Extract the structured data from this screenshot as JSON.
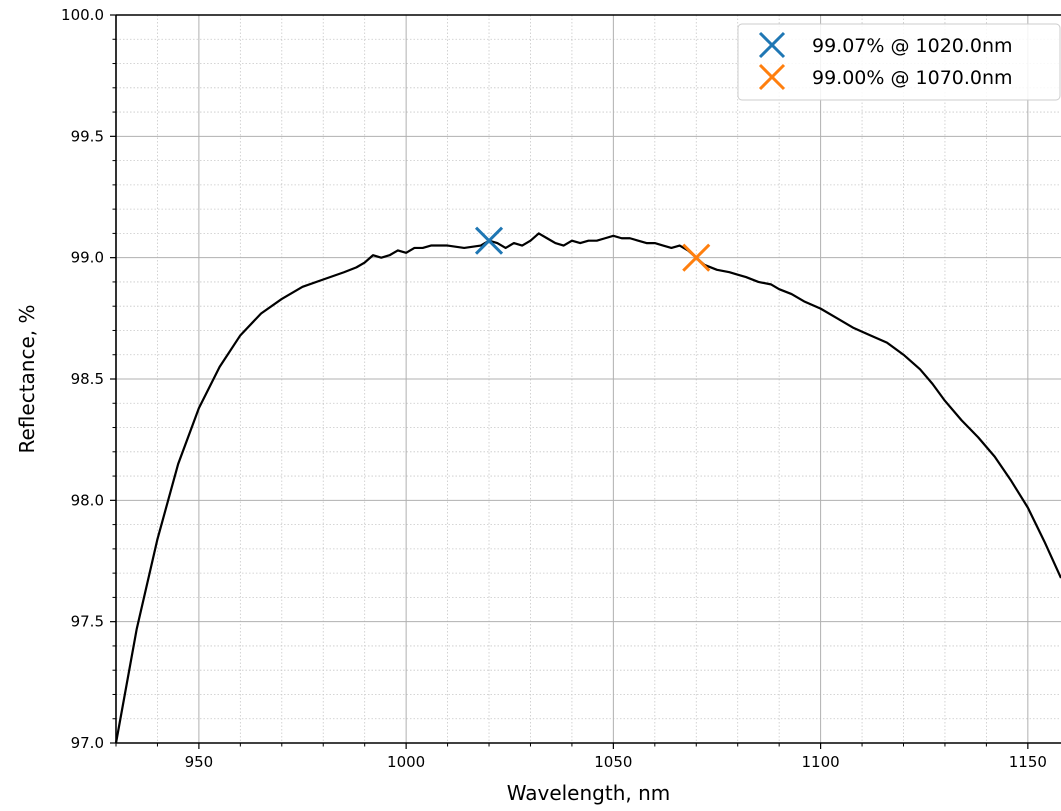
{
  "chart_data": {
    "type": "line",
    "xlabel": "Wavelength, nm",
    "ylabel": "Reflectance, %",
    "xlim": [
      930,
      1158
    ],
    "ylim": [
      97.0,
      100.0
    ],
    "x_ticks": [
      950,
      1000,
      1050,
      1100,
      1150
    ],
    "x_tick_labels": [
      "950",
      "1000",
      "1050",
      "1100",
      "1150"
    ],
    "y_ticks": [
      97.0,
      97.5,
      98.0,
      98.5,
      99.0,
      99.5,
      100.0
    ],
    "y_tick_labels": [
      "97.0",
      "97.5",
      "98.0",
      "98.5",
      "99.0",
      "99.5",
      "100.0"
    ],
    "grid": {
      "major": true,
      "minor": true
    },
    "legend_position": "top-right",
    "series": [
      {
        "color": "#000000",
        "x": [
          930,
          935,
          940,
          945,
          950,
          955,
          960,
          965,
          970,
          975,
          980,
          985,
          988,
          990,
          992,
          994,
          996,
          998,
          1000,
          1002,
          1004,
          1006,
          1010,
          1014,
          1018,
          1020,
          1022,
          1024,
          1026,
          1028,
          1030,
          1032,
          1034,
          1036,
          1038,
          1040,
          1042,
          1044,
          1046,
          1048,
          1050,
          1052,
          1054,
          1056,
          1058,
          1060,
          1062,
          1064,
          1066,
          1068,
          1070,
          1072,
          1075,
          1078,
          1080,
          1082,
          1085,
          1088,
          1090,
          1093,
          1096,
          1100,
          1104,
          1108,
          1112,
          1116,
          1120,
          1124,
          1127,
          1130,
          1134,
          1138,
          1142,
          1146,
          1150,
          1154,
          1158
        ],
        "y": [
          97.0,
          97.47,
          97.84,
          98.15,
          98.38,
          98.55,
          98.68,
          98.77,
          98.83,
          98.88,
          98.91,
          98.94,
          98.96,
          98.98,
          99.01,
          99.0,
          99.01,
          99.03,
          99.02,
          99.04,
          99.04,
          99.05,
          99.05,
          99.04,
          99.05,
          99.07,
          99.06,
          99.04,
          99.06,
          99.05,
          99.07,
          99.1,
          99.08,
          99.06,
          99.05,
          99.07,
          99.06,
          99.07,
          99.07,
          99.08,
          99.09,
          99.08,
          99.08,
          99.07,
          99.06,
          99.06,
          99.05,
          99.04,
          99.05,
          99.03,
          99.0,
          98.97,
          98.95,
          98.94,
          98.93,
          98.92,
          98.9,
          98.89,
          98.87,
          98.85,
          98.82,
          98.79,
          98.75,
          98.71,
          98.68,
          98.65,
          98.6,
          98.54,
          98.48,
          98.41,
          98.33,
          98.26,
          98.18,
          98.08,
          97.97,
          97.83,
          97.68
        ]
      }
    ],
    "markers": [
      {
        "name": "99.07% @ 1020.0nm",
        "x": 1020.0,
        "y": 99.07,
        "color": "#1f77b4"
      },
      {
        "name": "99.00% @ 1070.0nm",
        "x": 1070.0,
        "y": 99.0,
        "color": "#ff7f0e"
      }
    ]
  }
}
